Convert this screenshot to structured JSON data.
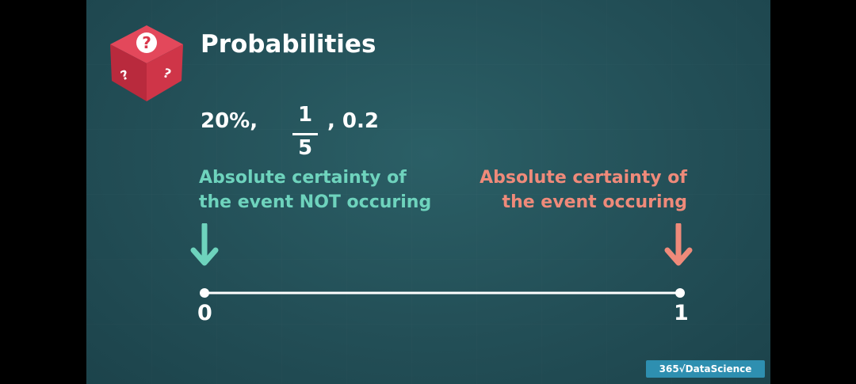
{
  "slide": {
    "title": "Probabilities",
    "expression": {
      "percent": "20%,",
      "fraction_numerator": "1",
      "fraction_denominator": "5",
      "decimal": ", 0.2"
    },
    "label_left": {
      "line1": "Absolute certainty of",
      "line2": "the event NOT occuring"
    },
    "label_right": {
      "line1": "Absolute certainty of",
      "line2": "the event occuring"
    },
    "axis": {
      "min_label": "0",
      "max_label": "1"
    },
    "brand": "365√DataScience",
    "colors": {
      "background": "#234f57",
      "left_accent": "#6ed3bd",
      "right_accent": "#ef8a7a",
      "dice": "#d9374b",
      "brand_bg": "#2e8fb0"
    },
    "icons": {
      "dice": "question-dice-icon",
      "left_arrow": "arrow-down-icon",
      "right_arrow": "arrow-down-icon"
    }
  }
}
